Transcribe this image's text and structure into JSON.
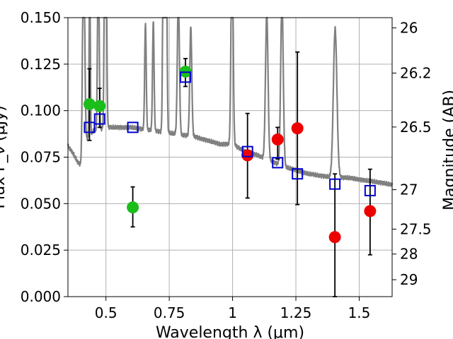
{
  "chart_data": {
    "type": "scatter",
    "xlabel": "Wavelength  λ (μm)",
    "ylabel": "Flux F_ν (μJy)",
    "y2label": "Magnitude (AB)",
    "xlim": [
      0.35,
      1.63
    ],
    "ylim": [
      0.0,
      0.15
    ],
    "grid": true,
    "x_ticks": [
      0.5,
      0.75,
      1.0,
      1.25,
      1.5
    ],
    "x_tick_labels": [
      "0.5",
      "0.75",
      "1",
      "1.25",
      "1.5"
    ],
    "y_ticks": [
      0.0,
      0.025,
      0.05,
      0.075,
      0.1,
      0.125,
      0.15
    ],
    "y_tick_labels": [
      "0.000",
      "0.025",
      "0.050",
      "0.075",
      "0.100",
      "0.125",
      "0.150"
    ],
    "y2_ticks": [
      {
        "label": "26",
        "flux": 0.1445
      },
      {
        "label": "26.2",
        "flux": 0.1202
      },
      {
        "label": "26.5",
        "flux": 0.0912
      },
      {
        "label": "27",
        "flux": 0.0575
      },
      {
        "label": "27.5",
        "flux": 0.0363
      },
      {
        "label": "28",
        "flux": 0.0229
      },
      {
        "label": "29",
        "flux": 0.0091
      }
    ],
    "colors": {
      "spectrum": "#808080",
      "green_points": "#1bbd1b",
      "red_points": "#ee0000",
      "model_squares": "#0000cc",
      "grid": "#b0b0b0"
    },
    "series": [
      {
        "style": "green-circles-with-errorbars",
        "points": [
          {
            "x": 0.435,
            "y": 0.1035,
            "err_lo": 0.0195,
            "err_hi": 0.019
          },
          {
            "x": 0.475,
            "y": 0.1025,
            "err_lo": 0.0115,
            "err_hi": 0.0095
          },
          {
            "x": 0.606,
            "y": 0.048,
            "err_lo": 0.0105,
            "err_hi": 0.011
          },
          {
            "x": 0.814,
            "y": 0.121,
            "err_lo": 0.008,
            "err_hi": 0.007
          }
        ]
      },
      {
        "style": "red-circles-with-errorbars",
        "points": [
          {
            "x": 1.059,
            "y": 0.076,
            "err_lo": 0.023,
            "err_hi": 0.0225
          },
          {
            "x": 1.178,
            "y": 0.0845,
            "err_lo": 0.0105,
            "err_hi": 0.0065
          },
          {
            "x": 1.256,
            "y": 0.0905,
            "err_lo": 0.041,
            "err_hi": 0.041
          },
          {
            "x": 1.404,
            "y": 0.032,
            "err_lo": 0.032,
            "err_hi": 0.034
          },
          {
            "x": 1.543,
            "y": 0.046,
            "err_lo": 0.0235,
            "err_hi": 0.0225
          }
        ]
      },
      {
        "style": "blue-open-squares",
        "points": [
          {
            "x": 0.435,
            "y": 0.091
          },
          {
            "x": 0.475,
            "y": 0.0955
          },
          {
            "x": 0.606,
            "y": 0.091
          },
          {
            "x": 0.814,
            "y": 0.118
          },
          {
            "x": 1.059,
            "y": 0.078
          },
          {
            "x": 1.178,
            "y": 0.072
          },
          {
            "x": 1.256,
            "y": 0.066
          },
          {
            "x": 1.404,
            "y": 0.0605
          },
          {
            "x": 1.543,
            "y": 0.057
          }
        ]
      }
    ],
    "spectrum": {
      "continuum": [
        [
          0.35,
          0.081
        ],
        [
          0.37,
          0.077
        ],
        [
          0.39,
          0.072
        ],
        [
          0.4,
          0.071
        ],
        [
          0.42,
          0.084
        ],
        [
          0.45,
          0.089
        ],
        [
          0.5,
          0.091
        ],
        [
          0.55,
          0.091
        ],
        [
          0.6,
          0.091
        ],
        [
          0.65,
          0.09
        ],
        [
          0.7,
          0.089
        ],
        [
          0.75,
          0.088
        ],
        [
          0.8,
          0.087
        ],
        [
          0.85,
          0.086
        ],
        [
          0.9,
          0.084
        ],
        [
          0.95,
          0.082
        ],
        [
          1.0,
          0.082
        ],
        [
          1.05,
          0.078
        ],
        [
          1.1,
          0.076
        ],
        [
          1.15,
          0.073
        ],
        [
          1.2,
          0.07
        ],
        [
          1.25,
          0.068
        ],
        [
          1.3,
          0.066
        ],
        [
          1.35,
          0.065
        ],
        [
          1.4,
          0.064
        ],
        [
          1.45,
          0.064
        ],
        [
          1.5,
          0.063
        ],
        [
          1.55,
          0.062
        ],
        [
          1.6,
          0.061
        ],
        [
          1.63,
          0.06
        ]
      ],
      "lines": [
        {
          "x": 0.412,
          "peak": 0.15,
          "w": 0.004
        },
        {
          "x": 0.436,
          "peak": 0.15,
          "w": 0.002
        },
        {
          "x": 0.47,
          "peak": 0.15,
          "w": 0.003
        },
        {
          "x": 0.496,
          "peak": 0.15,
          "w": 0.003
        },
        {
          "x": 0.5,
          "peak": 0.15,
          "w": 0.003
        },
        {
          "x": 0.656,
          "peak": 0.097,
          "w": 0.003
        },
        {
          "x": 0.687,
          "peak": 0.098,
          "w": 0.003
        },
        {
          "x": 0.727,
          "peak": 0.15,
          "w": 0.003
        },
        {
          "x": 0.732,
          "peak": 0.15,
          "w": 0.003
        },
        {
          "x": 0.738,
          "peak": 0.15,
          "w": 0.003
        },
        {
          "x": 0.786,
          "peak": 0.112,
          "w": 0.004
        },
        {
          "x": 0.835,
          "peak": 0.095,
          "w": 0.004
        },
        {
          "x": 0.998,
          "peak": 0.15,
          "w": 0.004
        },
        {
          "x": 1.135,
          "peak": 0.102,
          "w": 0.005
        },
        {
          "x": 1.195,
          "peak": 0.11,
          "w": 0.005
        },
        {
          "x": 1.405,
          "peak": 0.094,
          "w": 0.007
        }
      ]
    }
  }
}
